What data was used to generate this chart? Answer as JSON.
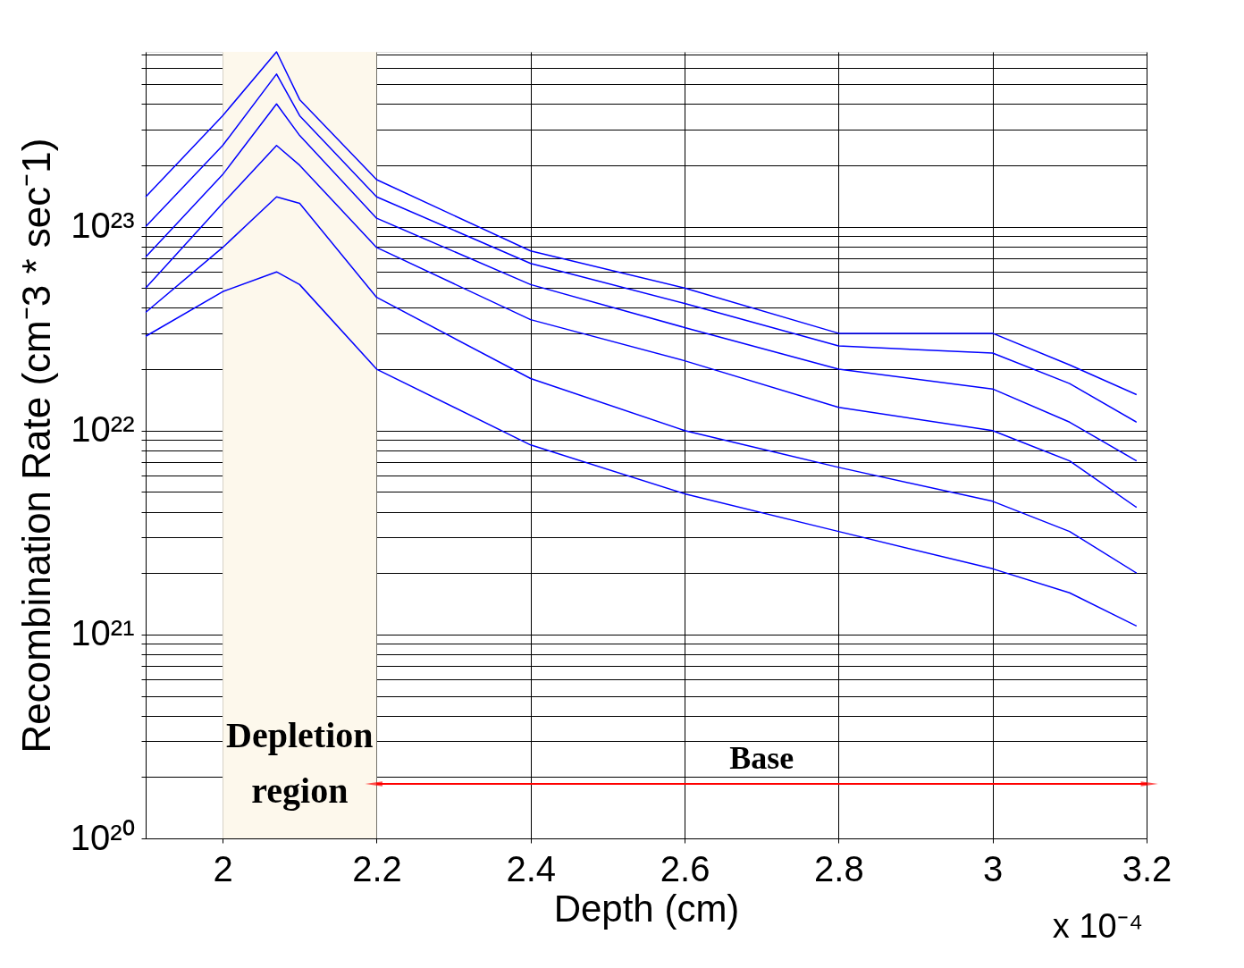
{
  "chart_data": {
    "type": "line",
    "xlabel": "Depth (cm)",
    "ylabel": "Recombination Rate (cm⁻3 * sec⁻1)",
    "x": [
      1.9,
      2.0,
      2.07,
      2.1,
      2.2,
      2.4,
      2.6,
      2.8,
      3.0,
      3.1,
      3.187
    ],
    "series": [
      {
        "color": "#0000ff",
        "values": [
          1.4e+23,
          3.5e+23,
          7.2e+23,
          4.2e+23,
          1.7e+23,
          7.6e+22,
          5e+22,
          3e+22,
          3e+22,
          2.1e+22,
          1.5e+22
        ]
      },
      {
        "color": "#0000ff",
        "values": [
          1e+23,
          2.5e+23,
          5.6e+23,
          3.5e+23,
          1.4e+23,
          6.6e+22,
          4.2e+22,
          2.6e+22,
          2.4e+22,
          1.7e+22,
          1.1e+22
        ]
      },
      {
        "color": "#0000ff",
        "values": [
          7.1e+22,
          1.8e+23,
          4e+23,
          2.8e+23,
          1.1e+23,
          5.2e+22,
          3.2e+22,
          2e+22,
          1.6e+22,
          1.1e+22,
          7.1e+21
        ]
      },
      {
        "color": "#0000ff",
        "values": [
          5e+22,
          1.3e+23,
          2.5e+23,
          2e+23,
          7.9e+22,
          3.5e+22,
          2.2e+22,
          1.3e+22,
          1e+22,
          7.1e+21,
          4.2e+21
        ]
      },
      {
        "color": "#0000ff",
        "values": [
          3.8e+22,
          7.9e+22,
          1.4e+23,
          1.3e+23,
          4.5e+22,
          1.8e+22,
          1e+22,
          6.6e+21,
          4.5e+21,
          3.2e+21,
          2e+21
        ]
      },
      {
        "color": "#0000ff",
        "values": [
          2.9e+22,
          4.8e+22,
          6e+22,
          5.2e+22,
          2e+22,
          8.5e+21,
          4.9e+21,
          3.2e+21,
          2.1e+21,
          1.6e+21,
          1.1e+21
        ]
      }
    ],
    "log": "y",
    "xlim": [
      1.9,
      3.2
    ],
    "xticks": [
      2,
      2.2,
      2.4,
      2.6,
      2.8,
      3,
      3.2
    ],
    "ylim": [
      1e+20,
      7.2e+23
    ],
    "yticks": [
      {
        "value": 1e+20,
        "label": "10²⁰"
      },
      {
        "value": 2e+20,
        "label": null
      },
      {
        "value": 3e+20,
        "label": null
      },
      {
        "value": 4e+20,
        "label": null
      },
      {
        "value": 5e+20,
        "label": null
      },
      {
        "value": 6e+20,
        "label": null
      },
      {
        "value": 7e+20,
        "label": null
      },
      {
        "value": 8e+20,
        "label": null
      },
      {
        "value": 9e+20,
        "label": null
      },
      {
        "value": 1e+21,
        "label": "10²¹"
      },
      {
        "value": 2e+21,
        "label": null
      },
      {
        "value": 3e+21,
        "label": null
      },
      {
        "value": 4e+21,
        "label": null
      },
      {
        "value": 5e+21,
        "label": null
      },
      {
        "value": 6e+21,
        "label": null
      },
      {
        "value": 7e+21,
        "label": null
      },
      {
        "value": 8e+21,
        "label": null
      },
      {
        "value": 9e+21,
        "label": null
      },
      {
        "value": 1e+22,
        "label": "10²²"
      },
      {
        "value": 2e+22,
        "label": null
      },
      {
        "value": 3e+22,
        "label": null
      },
      {
        "value": 4e+22,
        "label": null
      },
      {
        "value": 5e+22,
        "label": null
      },
      {
        "value": 6e+22,
        "label": null
      },
      {
        "value": 7e+22,
        "label": null
      },
      {
        "value": 8e+22,
        "label": null
      },
      {
        "value": 9e+22,
        "label": null
      },
      {
        "value": 1e+23,
        "label": "10²³"
      },
      {
        "value": 2e+23,
        "label": null
      },
      {
        "value": 3e+23,
        "label": null
      },
      {
        "value": 4e+23,
        "label": null
      },
      {
        "value": 5e+23,
        "label": null
      },
      {
        "value": 6e+23,
        "label": null
      },
      {
        "value": 7e+23,
        "label": null
      }
    ],
    "grid": true,
    "marker": "none",
    "line_style": "solid",
    "bands": [
      {
        "axis": "x",
        "from": 2.0,
        "to": 2.2,
        "label": "Depletion\nregion",
        "color": "#fdf8ec"
      }
    ],
    "annotations": [
      "Base",
      "x 10⁻⁴"
    ]
  }
}
